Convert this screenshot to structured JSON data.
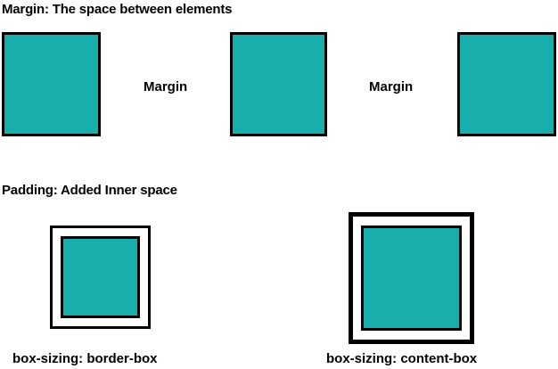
{
  "margin_section": {
    "heading": "Margin: The space between elements",
    "gap_label_1": "Margin",
    "gap_label_2": "Margin"
  },
  "padding_section": {
    "heading": "Padding: Added Inner space",
    "border_box_caption": "box-sizing: border-box",
    "content_box_caption": "box-sizing: content-box"
  },
  "colors": {
    "box_fill": "#17aeab",
    "outline": "#000000",
    "background": "#ffffff"
  }
}
